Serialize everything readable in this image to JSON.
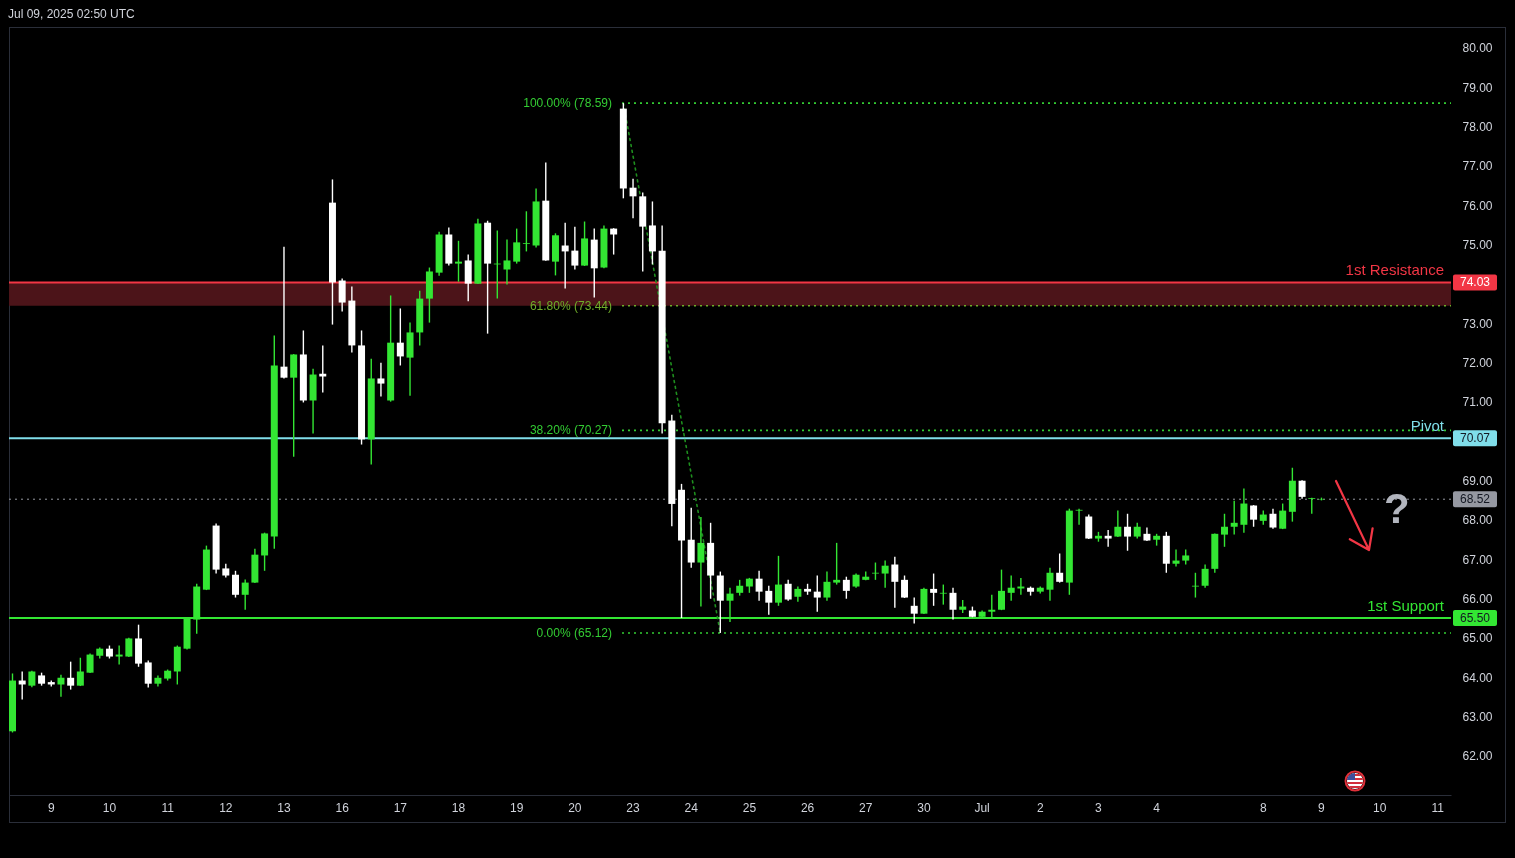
{
  "chart_data": {
    "type": "candlestick",
    "title": "Jul 09, 2025 02:50 UTC",
    "categories": [
      null,
      null,
      null,
      null,
      "9",
      null,
      null,
      null,
      null,
      null,
      "10",
      null,
      null,
      null,
      null,
      null,
      "11",
      null,
      null,
      null,
      null,
      null,
      "12",
      null,
      null,
      null,
      null,
      null,
      "13",
      null,
      null,
      null,
      null,
      null,
      "16",
      null,
      null,
      null,
      null,
      null,
      "17",
      null,
      null,
      null,
      null,
      null,
      "18",
      null,
      null,
      null,
      null,
      null,
      "19",
      null,
      null,
      null,
      null,
      null,
      "20",
      null,
      null,
      null,
      null,
      null,
      "23",
      null,
      null,
      null,
      null,
      null,
      "24",
      null,
      null,
      null,
      null,
      null,
      "25",
      null,
      null,
      null,
      null,
      null,
      "26",
      null,
      null,
      null,
      null,
      null,
      "27",
      null,
      null,
      null,
      null,
      null,
      "30",
      null,
      null,
      null,
      null,
      null,
      "Jul",
      null,
      null,
      null,
      null,
      null,
      "2",
      null,
      null,
      null,
      null,
      null,
      "3",
      null,
      null,
      null,
      null,
      null,
      "4",
      null,
      null,
      null,
      null,
      null,
      null,
      null,
      null,
      null,
      null,
      "8",
      null,
      null,
      null,
      null,
      null,
      "9",
      null,
      null,
      null,
      null,
      null,
      "10",
      null,
      null,
      null,
      null,
      null,
      "11",
      null
    ],
    "ohlc": [
      [
        62.62,
        64.09,
        62.59,
        63.91
      ],
      [
        63.91,
        64.14,
        63.43,
        63.81
      ],
      [
        63.78,
        64.16,
        63.74,
        64.14
      ],
      [
        64.04,
        64.11,
        63.78,
        63.83
      ],
      [
        63.87,
        63.91,
        63.76,
        63.81
      ],
      [
        63.81,
        64.06,
        63.5,
        63.98
      ],
      [
        63.98,
        64.39,
        63.68,
        63.78
      ],
      [
        63.78,
        64.49,
        63.77,
        64.14
      ],
      [
        64.11,
        64.6,
        64.1,
        64.57
      ],
      [
        64.54,
        64.75,
        64.47,
        64.72
      ],
      [
        64.72,
        64.8,
        64.47,
        64.52
      ],
      [
        64.52,
        64.8,
        64.32,
        64.57
      ],
      [
        64.52,
        65.0,
        64.51,
        64.98
      ],
      [
        64.98,
        65.33,
        64.26,
        64.34
      ],
      [
        64.37,
        64.42,
        63.73,
        63.83
      ],
      [
        63.83,
        64.04,
        63.76,
        63.98
      ],
      [
        63.96,
        64.19,
        63.91,
        64.16
      ],
      [
        64.14,
        64.8,
        63.81,
        64.77
      ],
      [
        64.72,
        65.51,
        64.7,
        65.48
      ],
      [
        65.46,
        66.37,
        65.1,
        66.3
      ],
      [
        66.22,
        67.34,
        66.21,
        67.24
      ],
      [
        67.85,
        67.9,
        66.63,
        66.73
      ],
      [
        66.76,
        66.88,
        66.53,
        66.58
      ],
      [
        66.6,
        66.7,
        66.02,
        66.09
      ],
      [
        66.09,
        66.48,
        65.71,
        66.4
      ],
      [
        66.4,
        67.26,
        66.39,
        67.11
      ],
      [
        67.09,
        67.67,
        66.7,
        67.65
      ],
      [
        67.57,
        72.68,
        67.26,
        71.92
      ],
      [
        71.89,
        74.94,
        71.59,
        71.61
      ],
      [
        71.61,
        72.21,
        69.6,
        72.2
      ],
      [
        72.2,
        72.81,
        70.98,
        71.03
      ],
      [
        71.03,
        71.84,
        70.19,
        71.69
      ],
      [
        71.71,
        72.43,
        71.23,
        71.64
      ],
      [
        76.06,
        76.65,
        72.96,
        74.03
      ],
      [
        74.08,
        74.13,
        73.29,
        73.52
      ],
      [
        73.57,
        73.93,
        72.25,
        72.43
      ],
      [
        72.43,
        72.81,
        69.91,
        70.04
      ],
      [
        70.04,
        72.09,
        69.4,
        71.59
      ],
      [
        71.59,
        71.99,
        71.13,
        71.46
      ],
      [
        71.03,
        73.7,
        71.0,
        72.5
      ],
      [
        72.5,
        73.37,
        71.92,
        72.15
      ],
      [
        72.12,
        73.01,
        71.15,
        72.76
      ],
      [
        72.76,
        73.82,
        72.43,
        73.62
      ],
      [
        73.62,
        74.41,
        73.01,
        74.31
      ],
      [
        74.28,
        75.32,
        74.2,
        75.25
      ],
      [
        75.25,
        75.43,
        74.46,
        74.51
      ],
      [
        74.51,
        75.09,
        74.05,
        74.56
      ],
      [
        74.59,
        74.74,
        73.55,
        74.0
      ],
      [
        74.0,
        75.65,
        73.99,
        75.53
      ],
      [
        75.55,
        75.6,
        72.73,
        74.51
      ],
      [
        74.49,
        75.35,
        73.62,
        74.51
      ],
      [
        74.36,
        75.12,
        73.98,
        74.59
      ],
      [
        74.56,
        75.4,
        74.51,
        75.05
      ],
      [
        75.01,
        75.84,
        74.82,
        75.03
      ],
      [
        74.97,
        76.42,
        74.92,
        76.09
      ],
      [
        76.11,
        77.08,
        74.58,
        74.59
      ],
      [
        74.56,
        75.28,
        74.21,
        75.23
      ],
      [
        74.97,
        75.55,
        73.88,
        74.82
      ],
      [
        74.84,
        75.45,
        74.36,
        74.46
      ],
      [
        74.46,
        75.58,
        74.45,
        75.15
      ],
      [
        75.12,
        75.4,
        73.65,
        74.39
      ],
      [
        74.41,
        75.48,
        74.39,
        75.4
      ],
      [
        75.4,
        75.41,
        74.74,
        75.25
      ],
      [
        78.45,
        78.59,
        76.17,
        76.42
      ],
      [
        76.44,
        76.67,
        75.66,
        76.22
      ],
      [
        76.22,
        76.32,
        74.31,
        75.45
      ],
      [
        75.48,
        76.09,
        74.49,
        74.82
      ],
      [
        74.84,
        75.48,
        70.19,
        70.45
      ],
      [
        70.52,
        70.67,
        67.83,
        68.4
      ],
      [
        68.76,
        68.91,
        65.5,
        67.47
      ],
      [
        67.49,
        68.3,
        66.78,
        66.91
      ],
      [
        66.91,
        68.07,
        65.79,
        67.41
      ],
      [
        67.41,
        67.92,
        65.99,
        66.58
      ],
      [
        66.58,
        66.68,
        65.12,
        65.94
      ],
      [
        65.94,
        66.27,
        65.4,
        66.12
      ],
      [
        66.14,
        66.47,
        66.07,
        66.32
      ],
      [
        66.3,
        66.52,
        66.14,
        66.5
      ],
      [
        66.5,
        66.7,
        65.94,
        66.17
      ],
      [
        66.19,
        66.32,
        65.58,
        65.89
      ],
      [
        65.89,
        67.08,
        65.81,
        66.35
      ],
      [
        66.37,
        66.47,
        65.94,
        65.97
      ],
      [
        66.04,
        66.3,
        65.91,
        66.24
      ],
      [
        66.24,
        66.37,
        66.09,
        66.17
      ],
      [
        66.17,
        66.58,
        65.66,
        66.02
      ],
      [
        66.02,
        66.68,
        65.94,
        66.42
      ],
      [
        66.4,
        67.41,
        66.35,
        66.47
      ],
      [
        66.47,
        66.55,
        65.99,
        66.19
      ],
      [
        66.3,
        66.63,
        66.27,
        66.6
      ],
      [
        66.47,
        66.68,
        66.46,
        66.55
      ],
      [
        66.63,
        66.91,
        66.47,
        66.65
      ],
      [
        66.63,
        66.96,
        66.27,
        66.83
      ],
      [
        66.86,
        67.06,
        65.76,
        66.42
      ],
      [
        66.47,
        66.58,
        66.01,
        66.02
      ],
      [
        65.81,
        66.02,
        65.36,
        65.61
      ],
      [
        65.61,
        66.27,
        65.6,
        66.24
      ],
      [
        66.24,
        66.63,
        65.81,
        66.14
      ],
      [
        66.12,
        66.35,
        65.84,
        66.14
      ],
      [
        66.14,
        66.27,
        65.46,
        65.71
      ],
      [
        65.71,
        65.96,
        65.63,
        65.79
      ],
      [
        65.69,
        65.79,
        65.52,
        65.53
      ],
      [
        65.53,
        65.69,
        65.5,
        65.66
      ],
      [
        65.66,
        66.09,
        65.5,
        65.71
      ],
      [
        65.71,
        66.73,
        65.7,
        66.19
      ],
      [
        66.14,
        66.58,
        65.94,
        66.27
      ],
      [
        66.25,
        66.52,
        66.09,
        66.3
      ],
      [
        66.27,
        66.3,
        66.07,
        66.17
      ],
      [
        66.17,
        66.3,
        66.12,
        66.27
      ],
      [
        66.22,
        66.78,
        65.94,
        66.65
      ],
      [
        66.65,
        67.14,
        66.4,
        66.42
      ],
      [
        66.4,
        68.28,
        66.09,
        68.23
      ],
      [
        68.23,
        68.28,
        67.87,
        68.25
      ],
      [
        68.08,
        68.13,
        67.51,
        67.52
      ],
      [
        67.52,
        67.69,
        67.44,
        67.59
      ],
      [
        67.59,
        67.74,
        67.31,
        67.52
      ],
      [
        67.57,
        68.23,
        67.56,
        67.82
      ],
      [
        67.82,
        68.15,
        67.21,
        67.57
      ],
      [
        67.57,
        67.92,
        67.52,
        67.82
      ],
      [
        67.64,
        67.8,
        67.46,
        67.47
      ],
      [
        67.49,
        67.64,
        67.34,
        67.59
      ],
      [
        67.59,
        67.69,
        66.65,
        66.88
      ],
      [
        66.88,
        67.24,
        66.81,
        66.96
      ],
      [
        66.96,
        67.24,
        66.86,
        67.09
      ],
      [
        66.3,
        66.65,
        66.02,
        66.32
      ],
      [
        66.32,
        66.86,
        66.27,
        66.75
      ],
      [
        66.75,
        67.65,
        66.65,
        67.64
      ],
      [
        67.62,
        68.15,
        67.31,
        67.82
      ],
      [
        67.82,
        68.48,
        67.62,
        67.92
      ],
      [
        67.87,
        68.79,
        67.67,
        68.41
      ],
      [
        68.36,
        68.37,
        67.82,
        68.0
      ],
      [
        67.97,
        68.23,
        67.87,
        68.13
      ],
      [
        68.15,
        68.28,
        67.77,
        67.8
      ],
      [
        67.77,
        68.41,
        67.76,
        68.23
      ],
      [
        68.2,
        69.32,
        67.95,
        68.99
      ],
      [
        68.99,
        69.0,
        68.53,
        68.58
      ],
      [
        68.53,
        68.56,
        68.15,
        68.55
      ],
      [
        68.51,
        68.56,
        68.49,
        68.52
      ],
      null,
      null,
      null,
      null,
      null,
      null,
      null,
      null,
      null,
      null,
      null,
      null,
      null
    ],
    "colors": [
      "#33e633",
      "#ffffff",
      "#33e633",
      "#ffffff",
      "#ffffff",
      "#33e633",
      "#ffffff",
      "#33e633",
      "#33e633",
      "#33e633",
      "#ffffff",
      "#33e633",
      "#33e633",
      "#ffffff",
      "#ffffff",
      "#33e633",
      "#33e633",
      "#33e633",
      "#33e633",
      "#33e633",
      "#33e633",
      "#ffffff",
      "#ffffff",
      "#ffffff",
      "#33e633",
      "#33e633",
      "#33e633",
      "#33e633",
      "#ffffff",
      "#33e633",
      "#ffffff",
      "#33e633",
      "#ffffff",
      "#ffffff",
      "#ffffff",
      "#ffffff",
      "#ffffff",
      "#33e633",
      "#ffffff",
      "#33e633",
      "#ffffff",
      "#33e633",
      "#33e633",
      "#33e633",
      "#33e633",
      "#ffffff",
      "#33e633",
      "#ffffff",
      "#33e633",
      "#ffffff",
      "#33e633",
      "#33e633",
      "#33e633",
      "#33e633",
      "#33e633",
      "#ffffff",
      "#33e633",
      "#ffffff",
      "#ffffff",
      "#33e633",
      "#ffffff",
      "#33e633",
      "#ffffff",
      "#ffffff",
      "#ffffff",
      "#ffffff",
      "#ffffff",
      "#ffffff",
      "#ffffff",
      "#ffffff",
      "#ffffff",
      "#33e633",
      "#ffffff",
      "#ffffff",
      "#33e633",
      "#33e633",
      "#33e633",
      "#ffffff",
      "#ffffff",
      "#33e633",
      "#ffffff",
      "#33e633",
      "#ffffff",
      "#ffffff",
      "#33e633",
      "#33e633",
      "#ffffff",
      "#33e633",
      "#33e633",
      "#33e633",
      "#33e633",
      "#ffffff",
      "#ffffff",
      "#ffffff",
      "#33e633",
      "#ffffff",
      "#33e633",
      "#ffffff",
      "#33e633",
      "#ffffff",
      "#33e633",
      "#33e633",
      "#33e633",
      "#33e633",
      "#33e633",
      "#ffffff",
      "#33e633",
      "#33e633",
      "#ffffff",
      "#33e633",
      "#33e633",
      "#ffffff",
      "#33e633",
      "#ffffff",
      "#33e633",
      "#ffffff",
      "#33e633",
      "#ffffff",
      "#33e633",
      "#ffffff",
      "#33e633",
      "#33e633",
      "#33e633",
      "#33e633",
      "#33e633",
      "#33e633",
      "#33e633",
      "#33e633",
      "#ffffff",
      "#33e633",
      "#ffffff",
      "#33e633",
      "#33e633",
      "#ffffff",
      "#33e633",
      "#33e633",
      null,
      null,
      null,
      null,
      null,
      null,
      null,
      null,
      null,
      null,
      null,
      null,
      null
    ],
    "ylim": [
      61,
      80.5
    ],
    "yticks": [
      {
        "value": 62,
        "label": "62.00"
      },
      {
        "value": 63,
        "label": "63.00"
      },
      {
        "value": 64,
        "label": "64.00"
      },
      {
        "value": 65,
        "label": "65.00"
      },
      {
        "value": 66,
        "label": "66.00"
      },
      {
        "value": 67,
        "label": "67.00"
      },
      {
        "value": 68,
        "label": "68.00"
      },
      {
        "value": 69,
        "label": "69.00"
      },
      {
        "value": 71,
        "label": "71.00"
      },
      {
        "value": 72,
        "label": "72.00"
      },
      {
        "value": 73,
        "label": "73.00"
      },
      {
        "value": 75,
        "label": "75.00"
      },
      {
        "value": 76,
        "label": "76.00"
      },
      {
        "value": 77,
        "label": "77.00"
      },
      {
        "value": 78,
        "label": "78.00"
      },
      {
        "value": 79,
        "label": "79.00"
      },
      {
        "value": 80,
        "label": "80.00"
      }
    ],
    "series": [
      {
        "type": "line",
        "color": "#1e8f1e",
        "line_style": "dotted",
        "values": [
          null,
          null,
          null,
          null,
          null,
          null,
          null,
          null,
          null,
          null,
          null,
          null,
          null,
          null,
          null,
          null,
          null,
          null,
          null,
          null,
          null,
          null,
          null,
          null,
          null,
          null,
          null,
          null,
          null,
          null,
          null,
          null,
          null,
          null,
          null,
          null,
          null,
          null,
          null,
          null,
          null,
          null,
          null,
          null,
          null,
          null,
          null,
          null,
          null,
          null,
          null,
          null,
          null,
          null,
          null,
          null,
          null,
          null,
          null,
          null,
          null,
          null,
          null,
          78.59,
          null,
          null,
          null,
          null,
          null,
          null,
          null,
          null,
          null,
          65.12,
          null,
          null,
          null,
          null,
          null,
          null,
          null,
          null,
          null,
          null,
          null,
          null,
          null,
          null,
          null,
          null,
          null,
          null,
          null,
          null,
          null,
          null,
          null,
          null,
          null,
          null,
          null,
          null,
          null,
          null,
          null,
          null,
          null,
          null,
          null,
          null,
          null,
          null,
          null,
          null,
          null,
          null,
          null,
          null,
          null,
          null,
          null,
          null,
          null,
          null,
          null,
          null,
          null,
          null,
          null,
          null,
          null,
          null,
          null,
          null,
          null,
          null,
          null,
          null,
          null,
          null,
          null,
          null,
          null,
          null,
          null,
          null,
          null,
          null,
          null
        ]
      }
    ],
    "bands": [
      {
        "axis": "y",
        "from": 73.44,
        "to": 74.03,
        "color": "#4c1419"
      }
    ],
    "ref_lines": [
      {
        "axis": "y",
        "value": 78.59,
        "label": "100.00% (78.59)",
        "color": "#33cc33",
        "line_style": "dotted"
      },
      {
        "axis": "y",
        "value": 73.44,
        "label": "61.80% (73.44)",
        "color": "#6fae2a",
        "line_style": "dotted"
      },
      {
        "axis": "y",
        "value": 70.27,
        "label": "38.20% (70.27)",
        "color": "#33cc33",
        "line_style": "dotted"
      },
      {
        "axis": "y",
        "value": 65.12,
        "label": "0.00% (65.12)",
        "color": "#33cc33",
        "line_style": "dotted"
      },
      {
        "axis": "y",
        "value": 74.03,
        "label": "1st Resistance",
        "color": "#f23645",
        "line_style": "solid"
      },
      {
        "axis": "y",
        "value": 70.07,
        "label": "Pivot",
        "color": "#80deea",
        "line_style": "solid"
      },
      {
        "axis": "y",
        "value": 65.5,
        "label": "1st Support",
        "color": "#33e633",
        "line_style": "solid"
      },
      {
        "axis": "y",
        "value": 68.52,
        "color": "#9598a1",
        "line_style": "dotted"
      }
    ],
    "annotations": [
      "?",
      {
        "text": "74.03",
        "y": 74.03
      },
      {
        "text": "70.07",
        "y": 70.07
      },
      {
        "text": "68.52",
        "y": 68.52
      },
      {
        "text": "65.50",
        "y": 65.5
      }
    ]
  }
}
